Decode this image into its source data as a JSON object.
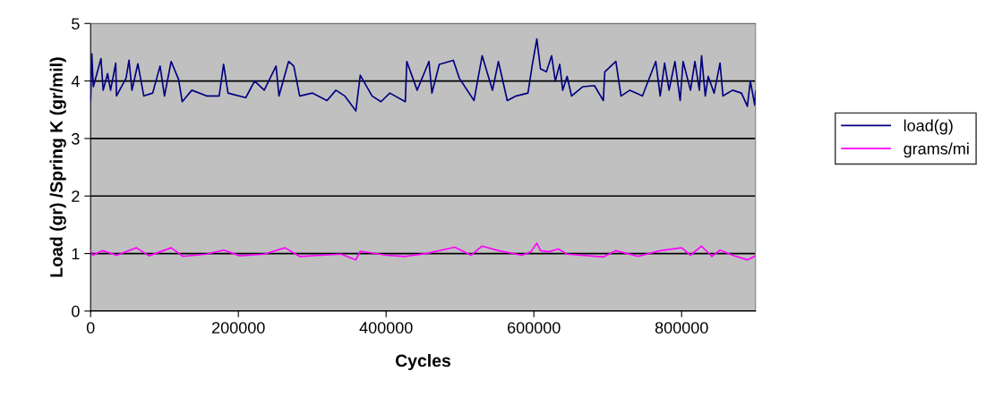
{
  "chart_data": {
    "type": "line",
    "xlabel": "Cycles",
    "ylabel": "Load (gr) /Spring K (gr/mil)",
    "xlim": [
      0,
      900000
    ],
    "xticks": [
      0,
      200000,
      400000,
      600000,
      800000
    ],
    "ylim": [
      0,
      5
    ],
    "yticks": [
      0,
      1,
      2,
      3,
      4,
      5
    ],
    "grid": "y",
    "legend": "right",
    "marker": "none",
    "line_style": "solid",
    "series": [
      {
        "name": "load(g)",
        "color": "#000080",
        "x": [
          0,
          1600,
          3700,
          14000,
          17000,
          23000,
          27000,
          34000,
          35000,
          48000,
          52000,
          56000,
          64000,
          72000,
          84000,
          94000,
          100000,
          109000,
          119000,
          124000,
          137000,
          157000,
          174000,
          180000,
          186000,
          210000,
          222000,
          235000,
          251000,
          255000,
          268000,
          275000,
          283000,
          300000,
          320000,
          332000,
          344000,
          359000,
          365000,
          381000,
          393000,
          405000,
          426000,
          428000,
          442000,
          458000,
          462000,
          472000,
          491000,
          499000,
          519000,
          530000,
          544000,
          552000,
          564000,
          576000,
          592000,
          598000,
          604000,
          609000,
          617000,
          624000,
          629000,
          635000,
          639000,
          645000,
          651000,
          666000,
          682000,
          694000,
          696000,
          711000,
          718000,
          730000,
          747000,
          765000,
          771000,
          777000,
          783000,
          791000,
          798000,
          802000,
          812000,
          818000,
          824000,
          827000,
          832000,
          836000,
          844000,
          852000,
          856000,
          869000,
          881000,
          889000,
          893000,
          899000,
          900000
        ],
        "values": [
          3.64,
          4.47,
          3.9,
          4.39,
          3.84,
          4.13,
          3.84,
          4.31,
          3.74,
          4.05,
          4.36,
          3.84,
          4.3,
          3.74,
          3.79,
          4.26,
          3.74,
          4.34,
          4.03,
          3.64,
          3.84,
          3.74,
          3.74,
          4.29,
          3.79,
          3.71,
          4.0,
          3.84,
          4.26,
          3.74,
          4.34,
          4.26,
          3.74,
          3.79,
          3.66,
          3.84,
          3.74,
          3.48,
          4.1,
          3.74,
          3.64,
          3.79,
          3.64,
          4.34,
          3.84,
          4.34,
          3.79,
          4.29,
          4.36,
          4.05,
          3.66,
          4.44,
          3.84,
          4.34,
          3.66,
          3.74,
          3.79,
          4.29,
          4.73,
          4.21,
          4.16,
          4.44,
          4.0,
          4.29,
          3.84,
          4.08,
          3.74,
          3.9,
          3.92,
          3.66,
          4.16,
          4.34,
          3.74,
          3.84,
          3.74,
          4.34,
          3.74,
          4.31,
          3.84,
          4.34,
          3.66,
          4.34,
          3.84,
          4.34,
          3.84,
          4.44,
          3.74,
          4.08,
          3.79,
          4.31,
          3.74,
          3.84,
          3.79,
          3.56,
          4.0,
          3.58,
          3.82
        ]
      },
      {
        "name": "grams/mi",
        "color": "#ff00ff",
        "x": [
          0,
          3000,
          16000,
          35000,
          62000,
          79000,
          109000,
          125000,
          157000,
          180000,
          202000,
          235000,
          263000,
          283000,
          312000,
          339000,
          359000,
          365000,
          401000,
          426000,
          454000,
          493000,
          515000,
          530000,
          552000,
          584000,
          596000,
          604000,
          609000,
          620000,
          633000,
          645000,
          694000,
          711000,
          741000,
          771000,
          800000,
          812000,
          827000,
          841000,
          852000,
          869000,
          889000,
          900000
        ],
        "values": [
          1.05,
          0.97,
          1.05,
          0.97,
          1.1,
          0.96,
          1.1,
          0.95,
          0.99,
          1.06,
          0.96,
          0.99,
          1.1,
          0.95,
          0.97,
          0.99,
          0.89,
          1.04,
          0.97,
          0.95,
          1.0,
          1.11,
          0.97,
          1.13,
          1.05,
          0.97,
          1.03,
          1.18,
          1.05,
          1.03,
          1.08,
          0.99,
          0.94,
          1.05,
          0.95,
          1.05,
          1.1,
          0.97,
          1.13,
          0.95,
          1.06,
          0.97,
          0.89,
          0.96
        ]
      }
    ]
  }
}
